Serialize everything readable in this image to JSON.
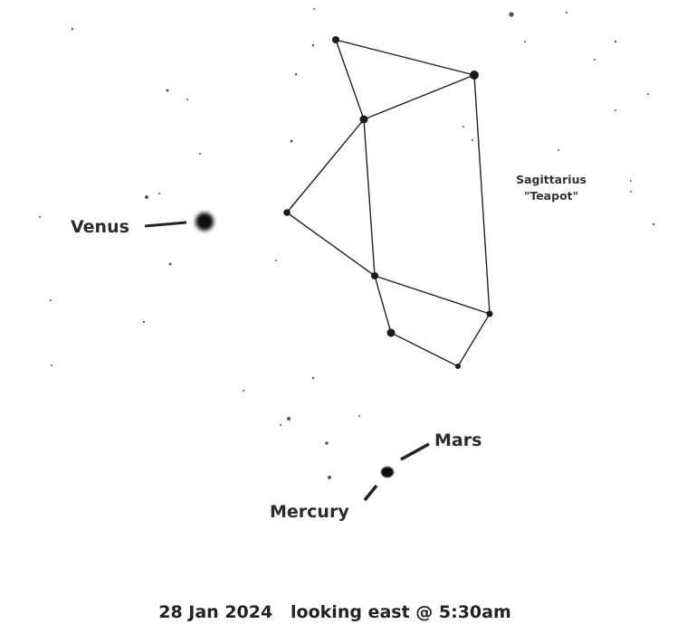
{
  "labels": {
    "venus": "Venus",
    "mars": "Mars",
    "mercury": "Mercury"
  },
  "constellation": {
    "name": "Sagittarius",
    "nickname": "\"Teapot\""
  },
  "caption": "28 Jan 2024   looking east @ 5:30am"
}
